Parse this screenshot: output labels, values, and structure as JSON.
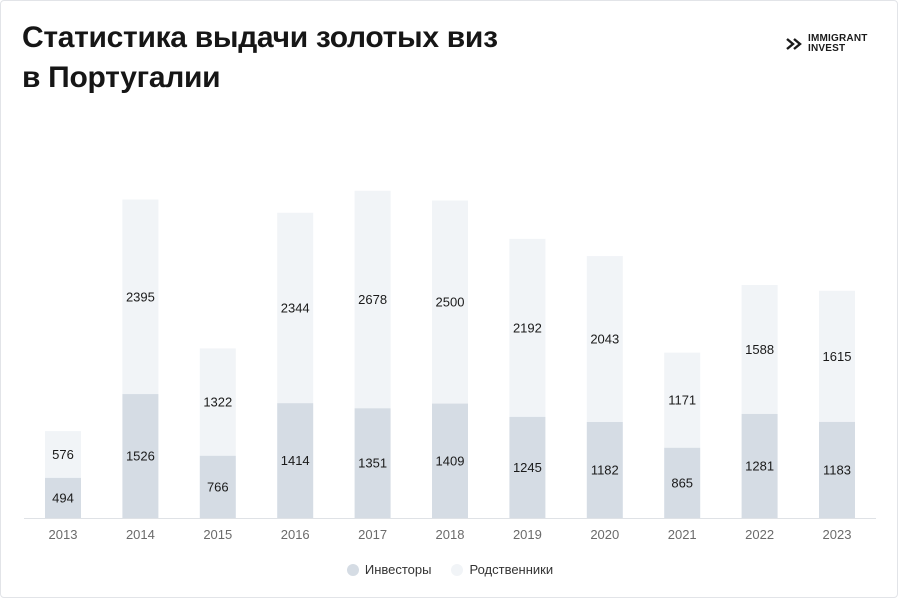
{
  "header": {
    "title_line1": "Статистика выдачи золотых виз",
    "title_line2": "в Португалии"
  },
  "logo": {
    "icon": "immigrant-invest-logo-mark",
    "line1": "IMMIGRANT",
    "line2": "INVEST"
  },
  "colors": {
    "investors": "#d5dce4",
    "relatives": "#f1f4f7",
    "axis": "#dfe2e6",
    "label": "#1a1a1a",
    "tick": "#6b6b6b"
  },
  "chart_data": {
    "type": "bar",
    "stacked": true,
    "categories": [
      "2013",
      "2014",
      "2015",
      "2016",
      "2017",
      "2018",
      "2019",
      "2020",
      "2021",
      "2022",
      "2023"
    ],
    "series": [
      {
        "name": "Инвесторы",
        "values": [
          494,
          1526,
          766,
          1414,
          1351,
          1409,
          1245,
          1182,
          865,
          1281,
          1183
        ]
      },
      {
        "name": "Родственники",
        "values": [
          576,
          2395,
          1322,
          2344,
          2678,
          2500,
          2192,
          2043,
          1171,
          1588,
          1615
        ]
      }
    ],
    "title": "Статистика выдачи золотых виз в Португалии",
    "xlabel": "",
    "ylabel": "",
    "ylim": [
      0,
      4100
    ],
    "grid": false,
    "legend": "bottom-center"
  }
}
